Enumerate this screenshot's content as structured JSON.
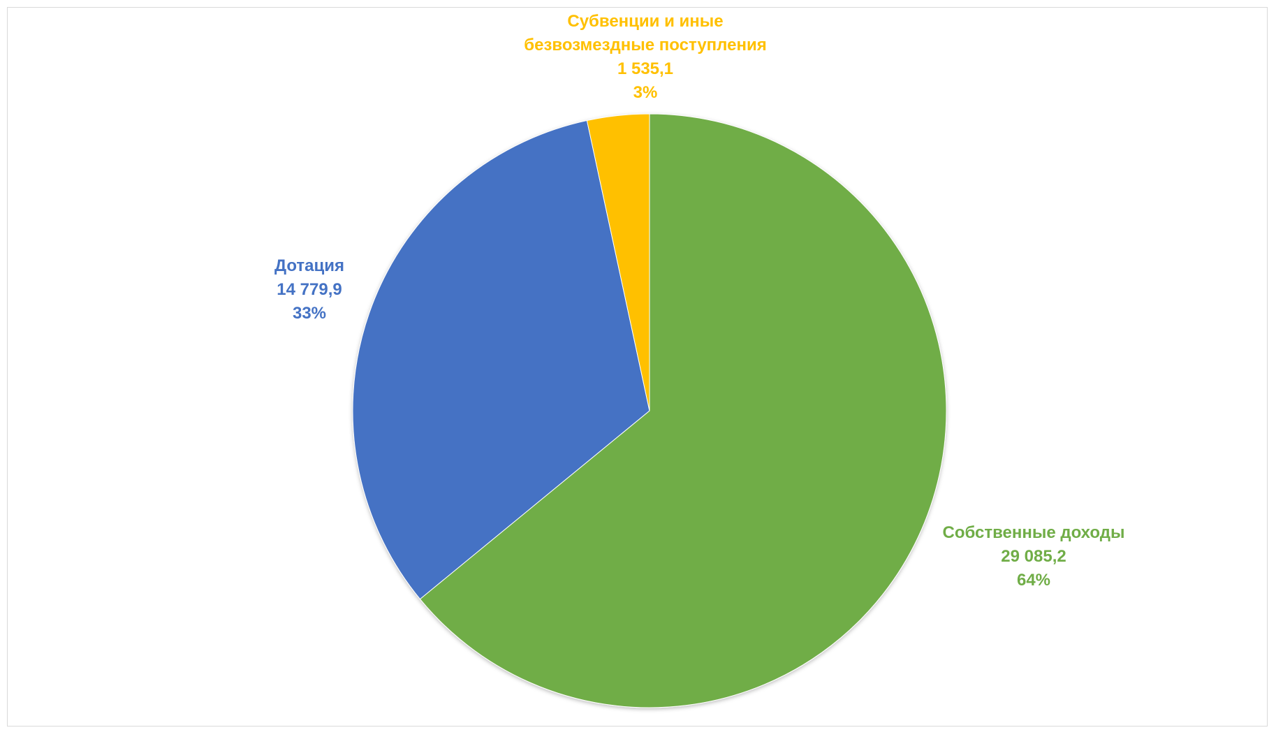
{
  "chart_data": {
    "type": "pie",
    "title": "",
    "slices": [
      {
        "name_lines": [
          "Собственные доходы"
        ],
        "value": 29085.2,
        "value_label": "29 085,2",
        "percent_label": "64%",
        "color": "#70AD47"
      },
      {
        "name_lines": [
          "Дотация"
        ],
        "value": 14779.9,
        "value_label": "14 779,9",
        "percent_label": "33%",
        "color": "#4472C4"
      },
      {
        "name_lines": [
          "Субвенции и иные",
          "безвозмездные поступления"
        ],
        "value": 1535.1,
        "value_label": "1 535,1",
        "percent_label": "3%",
        "color": "#FFC000"
      }
    ],
    "start_angle": "12 o'clock",
    "direction": "clockwise",
    "legend": "none"
  }
}
